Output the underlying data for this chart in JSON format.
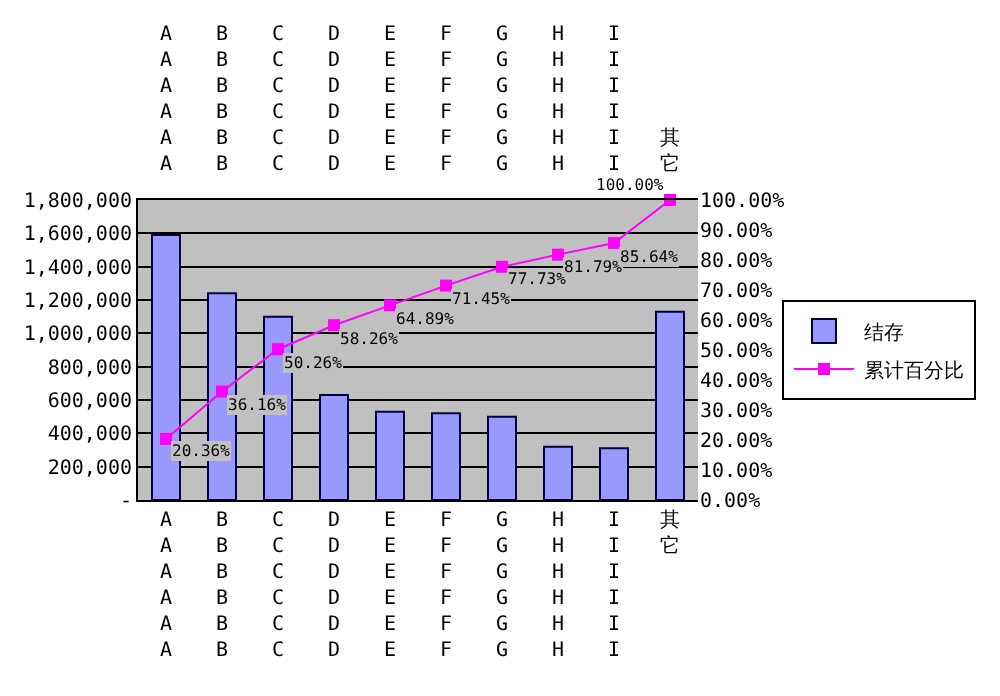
{
  "chart_data": {
    "type": "bar",
    "categories": [
      "AAAAAA",
      "BBBBBB",
      "CCCCCC",
      "DDDDDD",
      "EEEEEE",
      "FFFFFF",
      "GGGGGG",
      "HHHHHH",
      "IIIIII",
      "其它"
    ],
    "series": [
      {
        "name": "结存",
        "color": "#9999ff",
        "values": [
          1590000,
          1240000,
          1100000,
          630000,
          530000,
          520000,
          500000,
          320000,
          310000,
          1130000
        ]
      },
      {
        "name": "累计百分比",
        "type": "line",
        "axis": "y2",
        "color": "#ff00ff",
        "marker": "square",
        "values": [
          20.36,
          36.16,
          50.26,
          58.26,
          64.89,
          71.45,
          77.73,
          81.79,
          85.64,
          100
        ],
        "value_labels": [
          "20.36%",
          "36.16%",
          "50.26%",
          "58.26%",
          "64.89%",
          "71.45%",
          "77.73%",
          "81.79%",
          "85.64%",
          "100.00%"
        ]
      }
    ],
    "ylim": [
      0,
      1800000
    ],
    "yticks": [
      {
        "value": 0,
        "label": "-"
      },
      {
        "value": 200000,
        "label": "200,000"
      },
      {
        "value": 400000,
        "label": "400,000"
      },
      {
        "value": 600000,
        "label": "600,000"
      },
      {
        "value": 800000,
        "label": "800,000"
      },
      {
        "value": 1000000,
        "label": "1,000,000"
      },
      {
        "value": 1200000,
        "label": "1,200,000"
      },
      {
        "value": 1400000,
        "label": "1,400,000"
      },
      {
        "value": 1600000,
        "label": "1,600,000"
      },
      {
        "value": 1800000,
        "label": "1,800,000"
      }
    ],
    "y2lim": [
      0,
      100
    ],
    "y2ticks": [
      {
        "value": 0,
        "label": "0.00%"
      },
      {
        "value": 10,
        "label": "10.00%"
      },
      {
        "value": 20,
        "label": "20.00%"
      },
      {
        "value": 30,
        "label": "30.00%"
      },
      {
        "value": 40,
        "label": "40.00%"
      },
      {
        "value": 50,
        "label": "50.00%"
      },
      {
        "value": 60,
        "label": "60.00%"
      },
      {
        "value": 70,
        "label": "70.00%"
      },
      {
        "value": 80,
        "label": "80.00%"
      },
      {
        "value": 90,
        "label": "90.00%"
      },
      {
        "value": 100,
        "label": "100.00%"
      }
    ],
    "grid": "y",
    "legend": "right"
  }
}
